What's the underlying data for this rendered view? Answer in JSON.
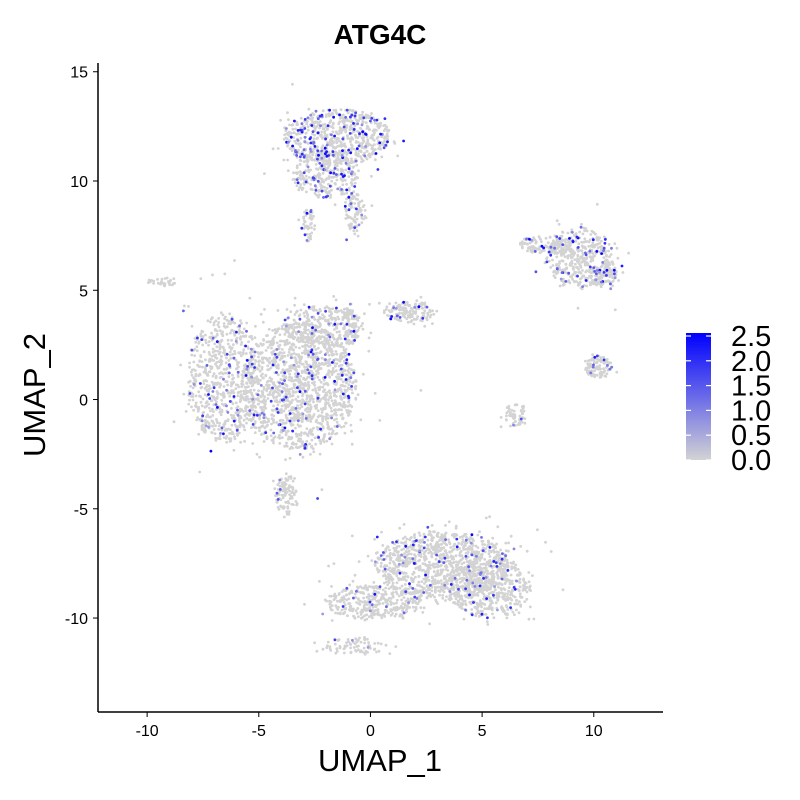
{
  "chart_data": {
    "type": "scatter",
    "title": "ATG4C",
    "xlabel": "UMAP_1",
    "ylabel": "UMAP_2",
    "xlim": [
      -12.2,
      13.1
    ],
    "ylim": [
      -14.3,
      15.4
    ],
    "x_ticks": [
      -10,
      -5,
      0,
      5,
      10
    ],
    "x_tick_labels": [
      "-10",
      "-5",
      "0",
      "5",
      "10"
    ],
    "y_ticks": [
      -10,
      -5,
      0,
      5,
      10,
      15
    ],
    "y_tick_labels": [
      "-10",
      "-5",
      "0",
      "5",
      "10",
      "15"
    ],
    "grid": false,
    "legend": {
      "placement": "right",
      "type": "colorbar",
      "min": 0.0,
      "max": 2.5,
      "ticks": [
        0.0,
        0.5,
        1.0,
        1.5,
        2.0,
        2.5
      ],
      "tick_labels": [
        "0.0",
        "0.5",
        "1.0",
        "1.5",
        "2.0",
        "2.5"
      ],
      "color_low": "#d3d3d3",
      "color_high": "#0000ff"
    },
    "clusters": [
      {
        "cx": -3.2,
        "cy": 0.6,
        "rx": 2.6,
        "ry": 2.9,
        "n": 1500,
        "expr": 0.06
      },
      {
        "cx": -6.6,
        "cy": 1.0,
        "rx": 1.6,
        "ry": 3.0,
        "n": 700,
        "expr": 0.08
      },
      {
        "cx": -2.1,
        "cy": 3.3,
        "rx": 1.8,
        "ry": 1.0,
        "n": 300,
        "expr": 0.06
      },
      {
        "cx": -3.8,
        "cy": -4.4,
        "rx": 0.5,
        "ry": 0.9,
        "n": 100,
        "expr": 0.04
      },
      {
        "cx": -1.5,
        "cy": 12.0,
        "rx": 2.4,
        "ry": 1.3,
        "n": 700,
        "expr": 0.16
      },
      {
        "cx": -2.0,
        "cy": 10.3,
        "rx": 1.5,
        "ry": 1.1,
        "n": 300,
        "expr": 0.14
      },
      {
        "cx": -0.7,
        "cy": 8.6,
        "rx": 0.5,
        "ry": 0.9,
        "n": 100,
        "expr": 0.12
      },
      {
        "cx": -2.8,
        "cy": 8.0,
        "rx": 0.3,
        "ry": 0.8,
        "n": 50,
        "expr": 0.05
      },
      {
        "cx": 1.8,
        "cy": 4.0,
        "rx": 1.2,
        "ry": 0.5,
        "n": 150,
        "expr": 0.06
      },
      {
        "cx": 3.2,
        "cy": -7.6,
        "rx": 3.0,
        "ry": 1.6,
        "n": 1100,
        "expr": 0.05
      },
      {
        "cx": 5.3,
        "cy": -8.6,
        "rx": 1.9,
        "ry": 1.4,
        "n": 500,
        "expr": 0.06
      },
      {
        "cx": 0.2,
        "cy": -9.3,
        "rx": 2.2,
        "ry": 0.8,
        "n": 350,
        "expr": 0.05
      },
      {
        "cx": -0.8,
        "cy": -11.3,
        "rx": 1.4,
        "ry": 0.4,
        "n": 80,
        "expr": 0.05
      },
      {
        "cx": 9.4,
        "cy": 6.5,
        "rx": 1.5,
        "ry": 1.4,
        "n": 450,
        "expr": 0.08
      },
      {
        "cx": 10.5,
        "cy": 5.6,
        "rx": 0.7,
        "ry": 0.5,
        "n": 100,
        "expr": 0.12
      },
      {
        "cx": 7.6,
        "cy": 7.1,
        "rx": 0.9,
        "ry": 0.4,
        "n": 100,
        "expr": 0.06
      },
      {
        "cx": 10.2,
        "cy": 1.5,
        "rx": 0.6,
        "ry": 0.5,
        "n": 120,
        "expr": 0.06
      },
      {
        "cx": 6.5,
        "cy": -0.7,
        "rx": 0.5,
        "ry": 0.5,
        "n": 60,
        "expr": 0.06
      },
      {
        "cx": -9.3,
        "cy": 5.4,
        "rx": 0.7,
        "ry": 0.2,
        "n": 30,
        "expr": 0.02
      },
      {
        "cx": -0.9,
        "cy": 3.4,
        "rx": 0.3,
        "ry": 1.0,
        "n": 60,
        "expr": 0.03
      }
    ]
  }
}
